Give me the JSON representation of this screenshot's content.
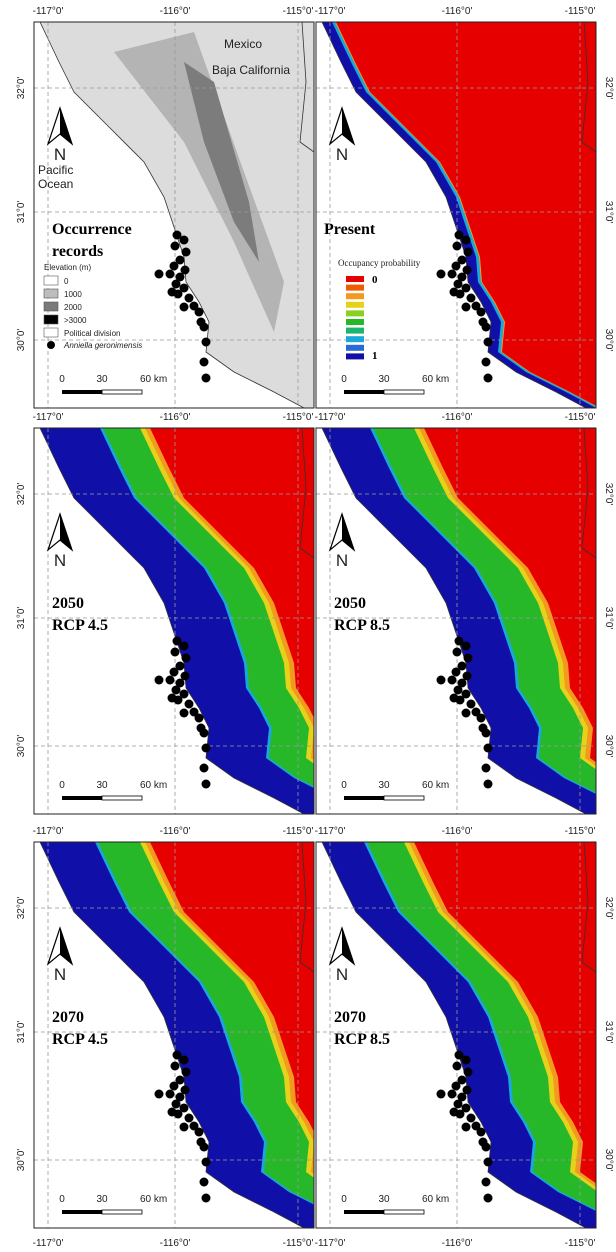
{
  "axes": {
    "lon_labels": [
      "-117°0'",
      "-116°0'",
      "-115°0'"
    ],
    "lat_labels": [
      "32°0'",
      "31°0'",
      "30°0'"
    ]
  },
  "north": "N",
  "scale_bar": [
    "0",
    "30",
    "60 km"
  ],
  "panels": [
    {
      "kind": "elevation",
      "title": [
        "Occurrence",
        "records"
      ],
      "place_labels": [
        "Mexico",
        "Baja California",
        "Pacific",
        "Ocean"
      ],
      "legend": {
        "title": "Elevation (m)",
        "items": [
          "0",
          "1000",
          "2000",
          ">3000",
          "Political division",
          "Anniella geronimensis"
        ]
      }
    },
    {
      "kind": "probability",
      "title": [
        "Present"
      ],
      "legend": {
        "title": "Occupancy probability",
        "min": "0",
        "max": "1"
      }
    },
    {
      "kind": "probability",
      "title": [
        "2050",
        "RCP 4.5"
      ]
    },
    {
      "kind": "probability",
      "title": [
        "2050",
        "RCP 8.5"
      ]
    },
    {
      "kind": "probability",
      "title": [
        "2070",
        "RCP 4.5"
      ]
    },
    {
      "kind": "probability",
      "title": [
        "2070",
        "RCP 8.5"
      ]
    }
  ]
}
